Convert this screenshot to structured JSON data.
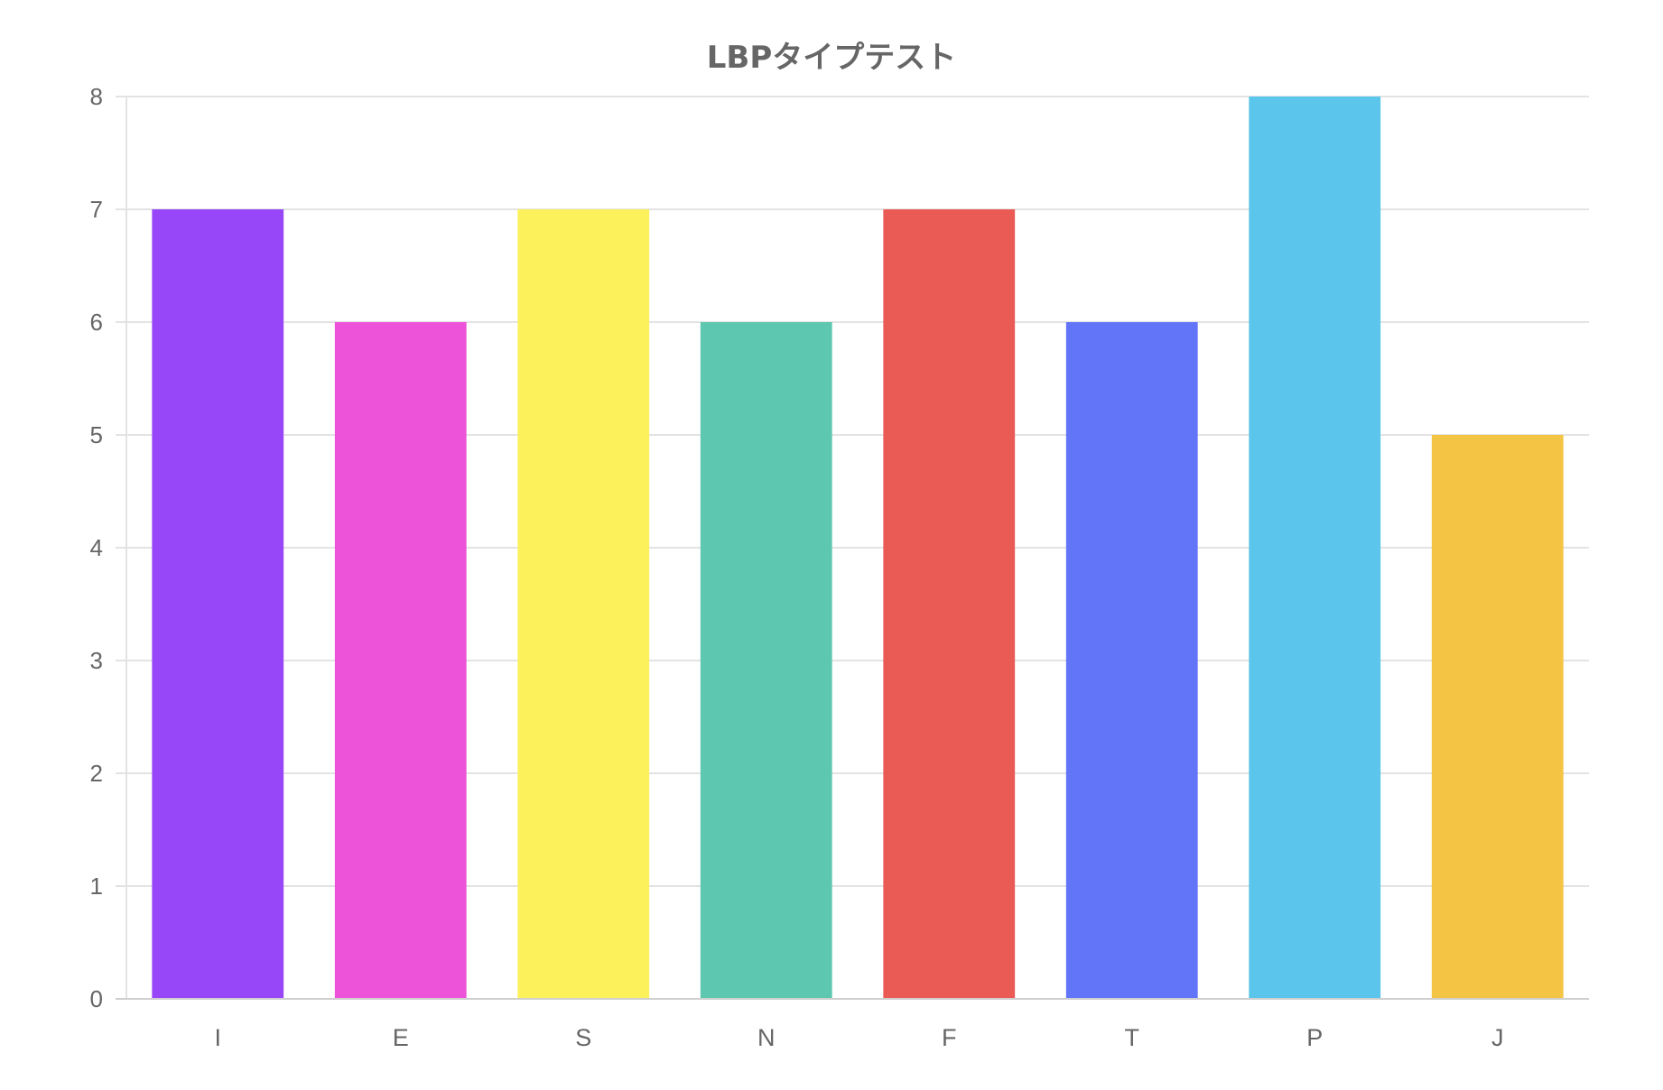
{
  "chart_data": {
    "type": "bar",
    "title": "LBPタイプテスト",
    "xlabel": "",
    "ylabel": "",
    "categories": [
      "I",
      "E",
      "S",
      "N",
      "F",
      "T",
      "P",
      "J"
    ],
    "values": [
      7,
      6,
      7,
      6,
      7,
      6,
      8,
      5
    ],
    "colors": [
      "#9747f7",
      "#ec53d8",
      "#fcf15b",
      "#5dc7b0",
      "#ea5b55",
      "#6274f8",
      "#5bc5ec",
      "#f4c445"
    ],
    "ylim": [
      0,
      8
    ],
    "yticks": [
      0,
      1,
      2,
      3,
      4,
      5,
      6,
      7,
      8
    ],
    "grid": true,
    "legend": "none"
  }
}
